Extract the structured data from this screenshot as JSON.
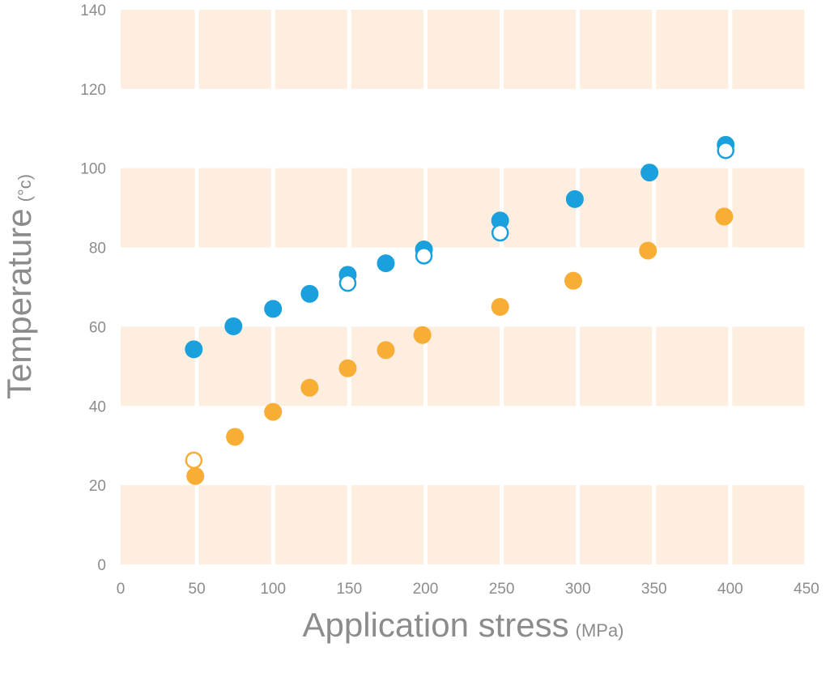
{
  "chart_data": {
    "type": "scatter",
    "title": "",
    "xlabel": "Application stress",
    "xlabel_unit": "(MPa)",
    "ylabel": "Temperature",
    "ylabel_unit": "(°c)",
    "xlim": [
      0,
      450
    ],
    "ylim": [
      0,
      140
    ],
    "x_ticks": [
      0,
      50,
      100,
      150,
      200,
      250,
      300,
      350,
      400,
      450
    ],
    "y_ticks": [
      0,
      20,
      40,
      60,
      80,
      100,
      120,
      140
    ],
    "grid": true,
    "legend": "none",
    "background_band_color": "#fdeee0",
    "series": [
      {
        "color": "#1aa0dc",
        "marker": "filled",
        "points": [
          [
            48,
            54.3
          ],
          [
            74,
            60.1
          ],
          [
            100,
            64.5
          ],
          [
            124,
            68.3
          ],
          [
            149,
            73.1
          ],
          [
            174,
            76
          ],
          [
            199,
            79.5
          ],
          [
            249,
            86.8
          ],
          [
            298,
            92.2
          ],
          [
            347,
            98.9
          ],
          [
            397,
            105.9
          ]
        ]
      },
      {
        "color": "#1aa0dc",
        "marker": "open",
        "points": [
          [
            149,
            71
          ],
          [
            199,
            77.9
          ],
          [
            249,
            83.7
          ],
          [
            397,
            104.5
          ]
        ]
      },
      {
        "color": "#f8ad35",
        "marker": "filled",
        "points": [
          [
            49,
            22.3
          ],
          [
            75,
            32.2
          ],
          [
            100,
            38.5
          ],
          [
            124,
            44.6
          ],
          [
            149,
            49.5
          ],
          [
            174,
            54.1
          ],
          [
            198,
            57.9
          ],
          [
            249,
            65
          ],
          [
            297,
            71.6
          ],
          [
            346,
            79.2
          ],
          [
            396,
            87.8
          ]
        ]
      },
      {
        "color": "#f8ad35",
        "marker": "open",
        "points": [
          [
            48,
            26.3
          ]
        ]
      }
    ]
  }
}
